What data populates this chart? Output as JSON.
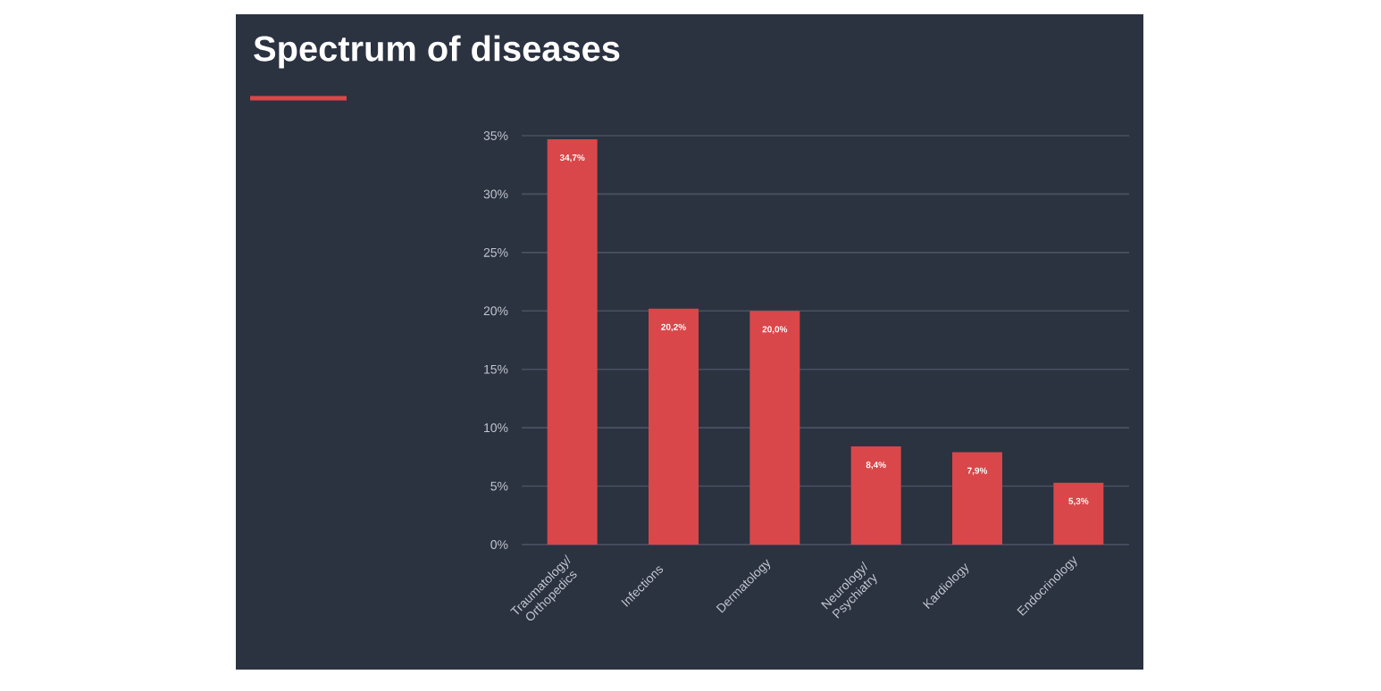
{
  "chart_data": {
    "type": "bar",
    "title": "Spectrum of diseases",
    "categories": [
      "Traumatology/ Orthopedics",
      "Infections",
      "Dermatology",
      "Neurology/ Psychiatry",
      "Kardiology",
      "Endocrinology"
    ],
    "values": [
      34.7,
      20.2,
      20.0,
      8.4,
      7.9,
      5.3
    ],
    "value_labels": [
      "34,7%",
      "20,2%",
      "20,0%",
      "8,4%",
      "7,9%",
      "5,3%"
    ],
    "color": "#d9474a",
    "ylim": [
      0,
      35
    ],
    "yticks": [
      {
        "value": 0,
        "label": "0%"
      },
      {
        "value": 5,
        "label": "5%"
      },
      {
        "value": 10,
        "label": "10%"
      },
      {
        "value": 15,
        "label": "15%"
      },
      {
        "value": 20,
        "label": "20%"
      },
      {
        "value": 25,
        "label": "25%"
      },
      {
        "value": 30,
        "label": "30%"
      },
      {
        "value": 35,
        "label": "35%"
      }
    ],
    "grid": "y"
  }
}
